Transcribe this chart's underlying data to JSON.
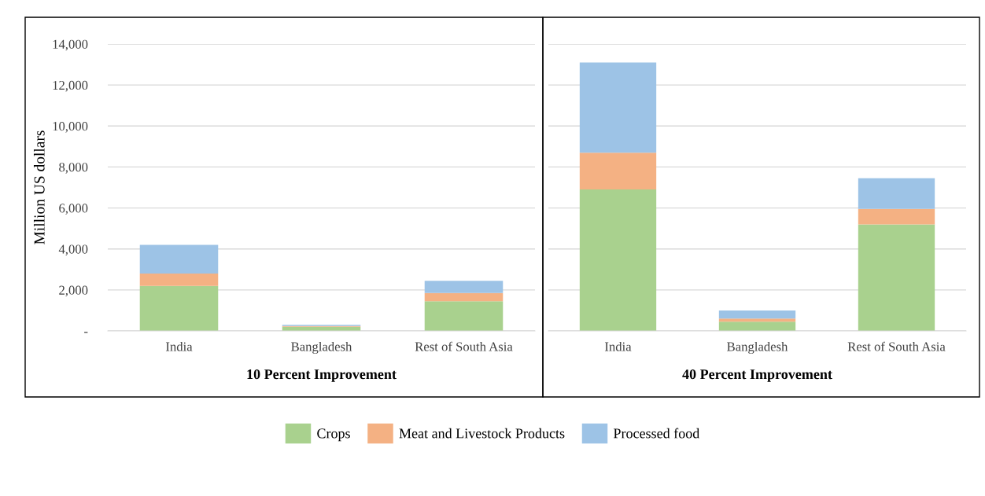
{
  "chart_data": [
    {
      "type": "bar",
      "stacked": true,
      "xlabel": "10 Percent Improvement",
      "ylabel": "Million US dollars",
      "categories": [
        "India",
        "Bangladesh",
        "Rest of South Asia"
      ],
      "series": [
        {
          "name": "Crops",
          "color": "#a9d18e",
          "values": [
            2200,
            200,
            1450
          ]
        },
        {
          "name": "Meat and Livestock Products",
          "color": "#f4b183",
          "values": [
            600,
            40,
            400
          ]
        },
        {
          "name": "Processed food",
          "color": "#9dc3e6",
          "values": [
            1400,
            60,
            600
          ]
        }
      ],
      "ylim": [
        0,
        14000
      ],
      "yticks": [
        {
          "value": 0,
          "label": "-"
        },
        {
          "value": 2000,
          "label": "2,000"
        },
        {
          "value": 4000,
          "label": "4,000"
        },
        {
          "value": 6000,
          "label": "6,000"
        },
        {
          "value": 8000,
          "label": "8,000"
        },
        {
          "value": 10000,
          "label": "10,000"
        },
        {
          "value": 12000,
          "label": "12,000"
        },
        {
          "value": 14000,
          "label": "14,000"
        }
      ],
      "grid": "y",
      "legend": "bottom"
    },
    {
      "type": "bar",
      "stacked": true,
      "xlabel": "40 Percent Improvement",
      "categories": [
        "India",
        "Bangladesh",
        "Rest of South Asia"
      ],
      "series": [
        {
          "color": "#a9d18e",
          "values": [
            6900,
            450,
            5200
          ]
        },
        {
          "color": "#f4b183",
          "values": [
            1800,
            150,
            750
          ]
        },
        {
          "color": "#9dc3e6",
          "values": [
            4400,
            400,
            1500
          ]
        }
      ],
      "ylim": [
        0,
        14000
      ],
      "yticks": [
        0,
        2000,
        4000,
        6000,
        8000,
        10000,
        12000,
        14000
      ],
      "grid": "y",
      "tick_labels": "x"
    }
  ]
}
